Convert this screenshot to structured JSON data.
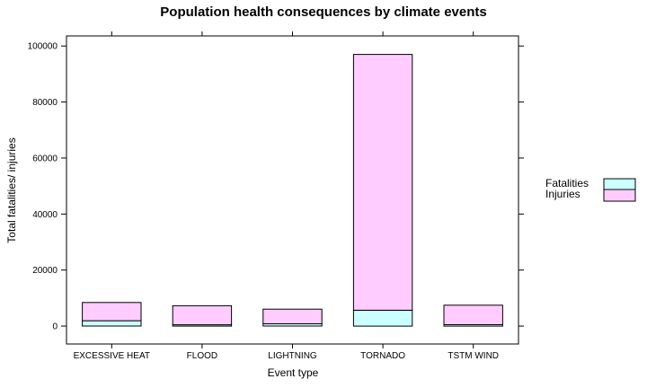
{
  "chart_data": {
    "type": "bar",
    "stacked": true,
    "title": "Population health consequences by climate events",
    "xlabel": "Event type",
    "ylabel": "Total fatalities/ injuries",
    "categories": [
      "EXCESSIVE HEAT",
      "FLOOD",
      "LIGHTNING",
      "TORNADO",
      "TSTM WIND"
    ],
    "series": [
      {
        "name": "Fatalities",
        "color": "#ccffff",
        "values": [
          1903,
          470,
          816,
          5633,
          504
        ]
      },
      {
        "name": "Injuries",
        "color": "#ffccff",
        "values": [
          6525,
          6789,
          5230,
          91346,
          6957
        ]
      }
    ],
    "ylim": [
      -6400,
      103600
    ],
    "yticks": [
      0,
      20000,
      40000,
      60000,
      80000,
      100000
    ],
    "legend": "right",
    "grid": false
  }
}
